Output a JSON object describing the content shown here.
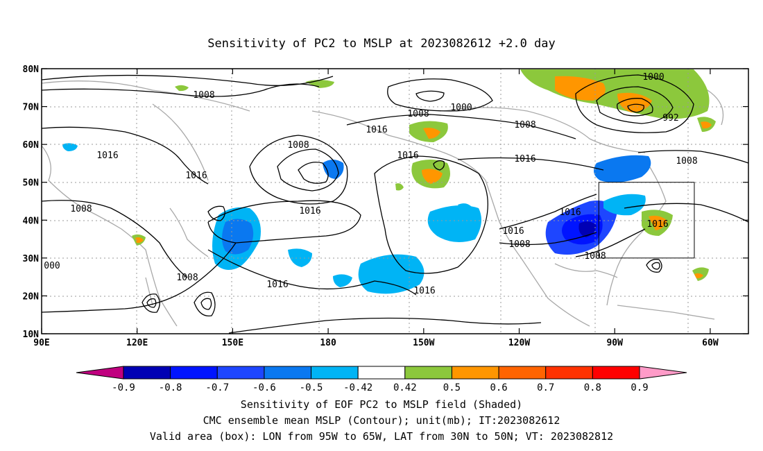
{
  "title": "Sensitivity of PC2 to MSLP at 2023082612 +2.0 day",
  "lat_labels": [
    "80N",
    "70N",
    "60N",
    "50N",
    "40N",
    "30N",
    "20N",
    "10N"
  ],
  "lon_labels": [
    "90E",
    "120E",
    "150E",
    "180",
    "150W",
    "120W",
    "90W",
    "60W"
  ],
  "contour_labels": [
    "1008",
    "1000",
    "1008",
    "1008",
    "1016",
    "1016",
    "1008",
    "1016",
    "1016",
    "1008",
    "1016",
    "1016",
    "1000",
    "992",
    "1008",
    "1016",
    "1016",
    "1008",
    "1008",
    "1016",
    "1008",
    "1016",
    "000"
  ],
  "colorbar": {
    "tick_labels": [
      "-0.9",
      "-0.8",
      "-0.7",
      "-0.6",
      "-0.5",
      "-0.42",
      "0.42",
      "0.5",
      "0.6",
      "0.7",
      "0.8",
      "0.9"
    ],
    "colors": [
      "#c0007f",
      "#0000b4",
      "#0014ff",
      "#1e46ff",
      "#0a78f0",
      "#00b4f5",
      "#ffffff",
      "#8cc83c",
      "#ff9600",
      "#ff6400",
      "#ff3200",
      "#ff0000",
      "#ff9bc8"
    ]
  },
  "captions": [
    "Sensitivity of EOF PC2 to MSLP field (Shaded)",
    "CMC ensemble mean MSLP (Contour); unit(mb); IT:2023082612",
    "Valid area (box): LON from 95W to 65W, LAT from 30N to 50N; VT: 2023082812"
  ],
  "valid_box": {
    "lon_min": -95,
    "lon_max": -65,
    "lat_min": 30,
    "lat_max": 50
  },
  "map_extent": {
    "lon_min": 90,
    "lon_max": 312,
    "lat_min": 10,
    "lat_max": 80
  }
}
